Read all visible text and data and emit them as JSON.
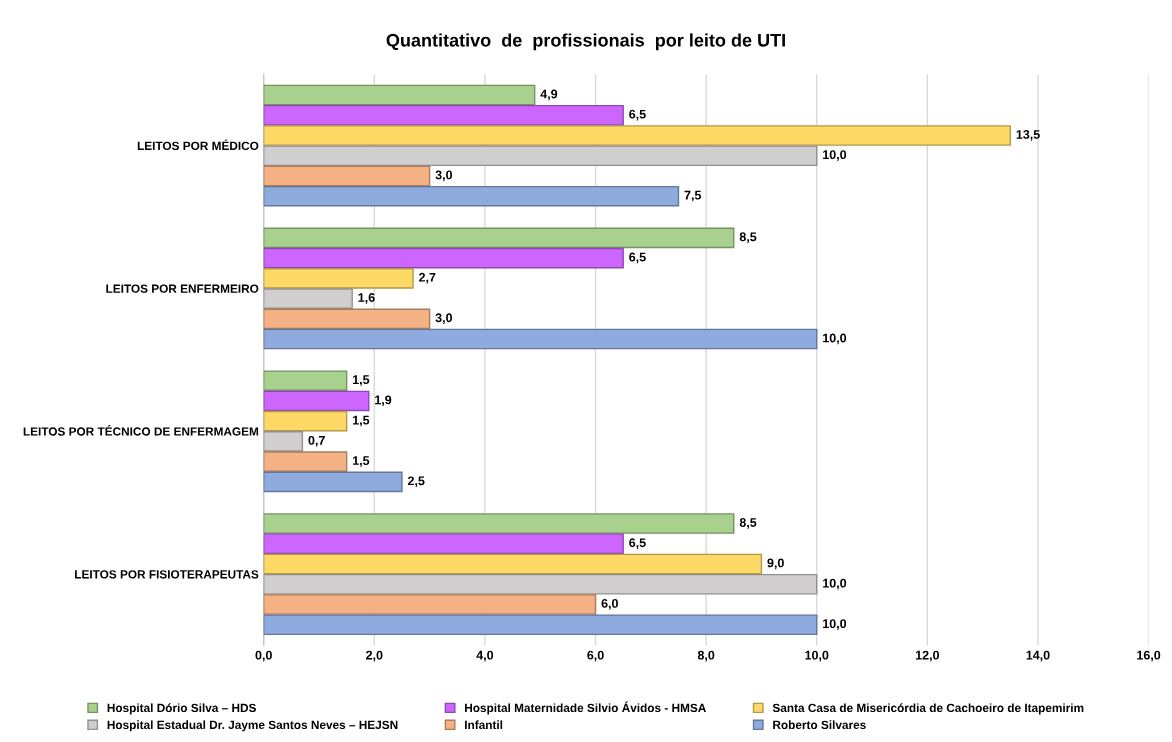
{
  "chart_data": {
    "type": "bar",
    "orientation": "horizontal",
    "title": "Quantitativo  de  profissionais  por leito de UTI",
    "categories": [
      "LEITOS POR MÉDICO",
      "LEITOS POR ENFERMEIRO",
      "LEITOS POR TÉCNICO DE ENFERMAGEM",
      "LEITOS POR FISIOTERAPEUTAS"
    ],
    "series": [
      {
        "name": "Hospital Dório Silva – HDS",
        "color": "#a9d18e",
        "values": [
          4.9,
          8.5,
          1.5,
          8.5
        ],
        "value_labels": [
          "4,9",
          "8,5",
          "1,5",
          "8,5"
        ]
      },
      {
        "name": "Hospital Maternidade Silvio Ávidos - HMSA",
        "color": "#cc66ff",
        "values": [
          6.5,
          6.5,
          1.9,
          6.5
        ],
        "value_labels": [
          "6,5",
          "6,5",
          "1,9",
          "6,5"
        ]
      },
      {
        "name": "Santa Casa de Misericórdia de Cachoeiro de Itapemirim",
        "color": "#ffd966",
        "values": [
          13.5,
          2.7,
          1.5,
          9.0
        ],
        "value_labels": [
          "13,5",
          "2,7",
          "1,5",
          "9,0"
        ]
      },
      {
        "name": "Hospital Estadual Dr. Jayme Santos Neves – HEJSN",
        "color": "#d0cece",
        "values": [
          10.0,
          1.6,
          0.7,
          10.0
        ],
        "value_labels": [
          "10,0",
          "1,6",
          "0,7",
          "10,0"
        ]
      },
      {
        "name": "Infantil",
        "color": "#f4b183",
        "values": [
          3.0,
          3.0,
          1.5,
          6.0
        ],
        "value_labels": [
          "3,0",
          "3,0",
          "1,5",
          "6,0"
        ]
      },
      {
        "name": "Roberto Silvares",
        "color": "#8faadc",
        "values": [
          7.5,
          10.0,
          2.5,
          10.0
        ],
        "value_labels": [
          "7,5",
          "10,0",
          "2,5",
          "10,0"
        ]
      }
    ],
    "xlim": [
      0,
      16
    ],
    "xticks": [
      {
        "value": 0,
        "label": "0,0"
      },
      {
        "value": 2,
        "label": "2,0"
      },
      {
        "value": 4,
        "label": "4,0"
      },
      {
        "value": 6,
        "label": "6,0"
      },
      {
        "value": 8,
        "label": "8,0"
      },
      {
        "value": 10,
        "label": "10,0"
      },
      {
        "value": 12,
        "label": "12,0"
      },
      {
        "value": 14,
        "label": "14,0"
      },
      {
        "value": 16,
        "label": "16,0"
      }
    ],
    "grid": "x",
    "legend": "bottom"
  }
}
